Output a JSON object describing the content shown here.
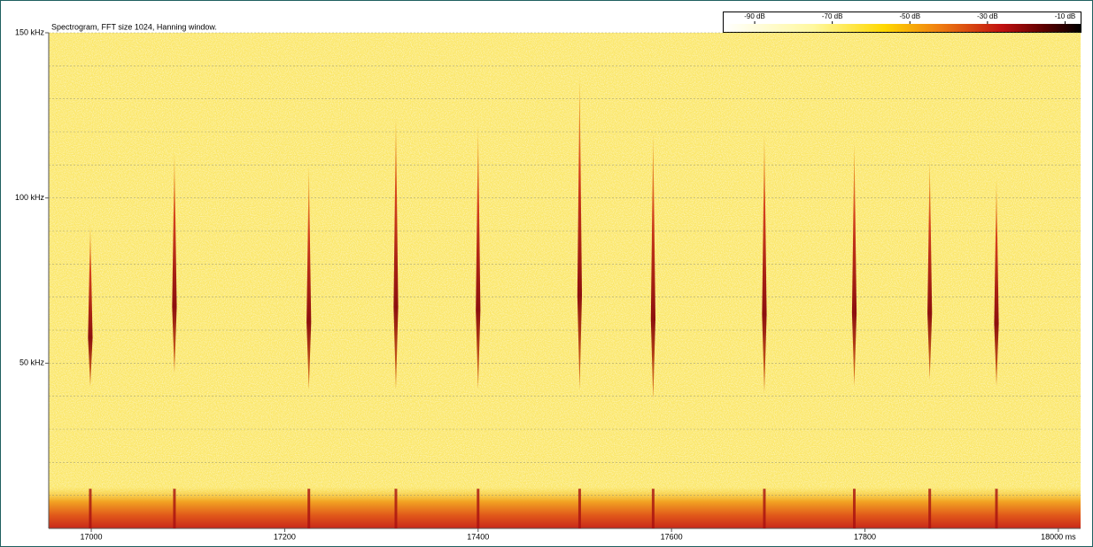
{
  "chart_data": {
    "type": "spectrogram",
    "title": "Spectrogram, FFT size 1024, Hanning window.",
    "xlim": [
      16956,
      18023
    ],
    "xticks": [
      17000,
      17200,
      17400,
      17600,
      17800,
      {
        "value": 18000,
        "label": "18000 ms"
      }
    ],
    "ylim": [
      0,
      150
    ],
    "yticks": [
      {
        "value": 50,
        "label": "50 kHz"
      },
      {
        "value": 100,
        "label": "100 kHz"
      },
      {
        "value": 150,
        "label": "150 kHz"
      }
    ],
    "minor_yticks": [
      10,
      20,
      30,
      40,
      60,
      70,
      80,
      90,
      110,
      120,
      130,
      140
    ],
    "grid": true,
    "calls": {
      "time": [
        16999,
        17086,
        17225,
        17315,
        17400,
        17505,
        17581,
        17696,
        17789,
        17867,
        17936
      ],
      "freq_high": [
        92,
        114,
        110,
        125,
        122,
        137,
        120,
        120,
        117,
        112,
        106
      ],
      "freq_low": [
        43,
        47,
        42,
        42,
        42,
        42,
        39,
        41,
        43,
        45,
        43
      ]
    },
    "colorbar": {
      "lim": [
        -98,
        -6
      ],
      "ticks": [
        {
          "value": -90,
          "label": "-90 dB"
        },
        {
          "value": -70,
          "label": "-70 dB"
        },
        {
          "value": -50,
          "label": "-50 dB"
        },
        {
          "value": -30,
          "label": "-30 dB"
        },
        {
          "value": -10,
          "label": "-10 dB"
        }
      ]
    }
  }
}
